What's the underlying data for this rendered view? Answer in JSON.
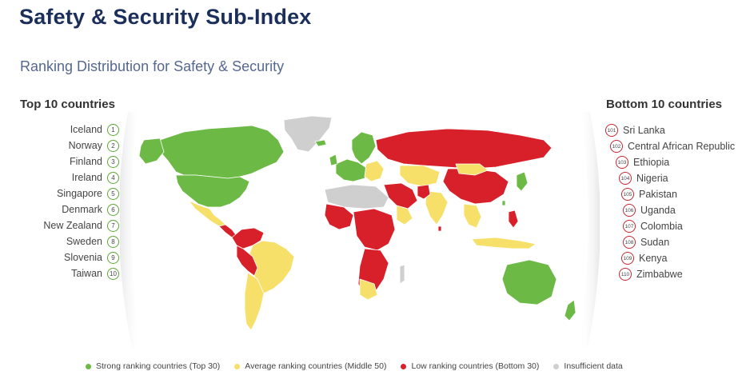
{
  "header": {
    "title": "Safety & Security Sub-Index",
    "subtitle": "Ranking Distribution for Safety & Security"
  },
  "top10": {
    "heading": "Top 10 countries",
    "items": [
      {
        "name": "Iceland",
        "rank": "1"
      },
      {
        "name": "Norway",
        "rank": "2"
      },
      {
        "name": "Finland",
        "rank": "3"
      },
      {
        "name": "Ireland",
        "rank": "4"
      },
      {
        "name": "Singapore",
        "rank": "5"
      },
      {
        "name": "Denmark",
        "rank": "6"
      },
      {
        "name": "New Zealand",
        "rank": "7"
      },
      {
        "name": "Sweden",
        "rank": "8"
      },
      {
        "name": "Slovenia",
        "rank": "9"
      },
      {
        "name": "Taiwan",
        "rank": "10"
      }
    ]
  },
  "bottom10": {
    "heading": "Bottom 10 countries",
    "items": [
      {
        "name": "Sri Lanka",
        "rank": "101"
      },
      {
        "name": "Central African Republic",
        "rank": "102"
      },
      {
        "name": "Ethiopia",
        "rank": "103"
      },
      {
        "name": "Nigeria",
        "rank": "104"
      },
      {
        "name": "Pakistan",
        "rank": "105"
      },
      {
        "name": "Uganda",
        "rank": "106"
      },
      {
        "name": "Colombia",
        "rank": "107"
      },
      {
        "name": "Sudan",
        "rank": "108"
      },
      {
        "name": "Kenya",
        "rank": "109"
      },
      {
        "name": "Zimbabwe",
        "rank": "110"
      }
    ]
  },
  "legend": [
    {
      "label": "Strong ranking countries (Top 30)",
      "color": "#6cba45"
    },
    {
      "label": "Average ranking countries (Middle 50)",
      "color": "#f7e06a"
    },
    {
      "label": "Low ranking countries (Bottom 30)",
      "color": "#d7202a"
    },
    {
      "label": "Insufficient data",
      "color": "#cfcfcf"
    }
  ],
  "colors": {
    "strong": "#6cba45",
    "average": "#f7e06a",
    "low": "#d7202a",
    "insufficient": "#cfcfcf"
  }
}
